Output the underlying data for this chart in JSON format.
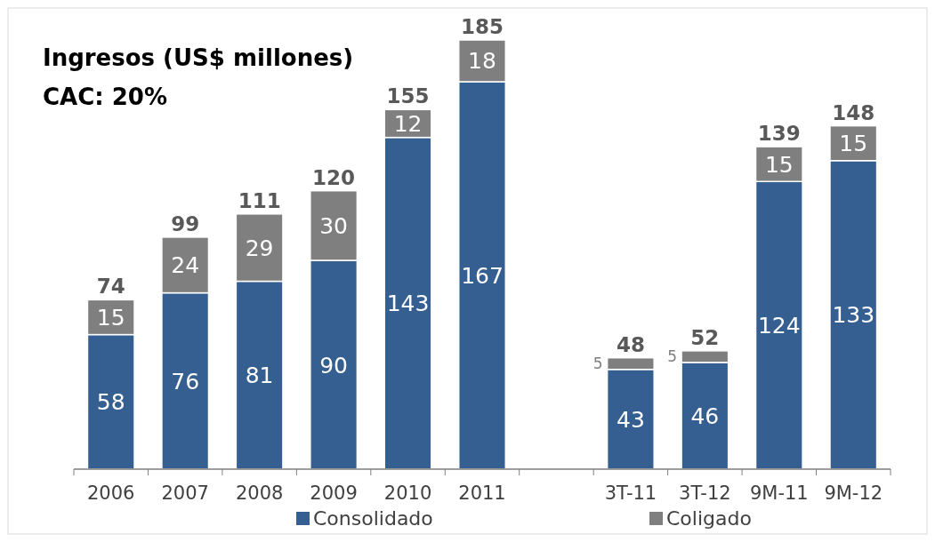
{
  "chart_data": {
    "type": "bar",
    "title": "Ingresos (US$ millones)",
    "subtitle": "CAC: 20%",
    "categories": [
      "2006",
      "2007",
      "2008",
      "2009",
      "2010",
      "2011",
      null,
      "3T-11",
      "3T-12",
      "9M-11",
      "9M-12"
    ],
    "stacked": true,
    "series": [
      {
        "name": "Consolidado",
        "color": "#365f91",
        "values": [
          58,
          76,
          81,
          90,
          143,
          167,
          null,
          43,
          46,
          124,
          133
        ]
      },
      {
        "name": "Coligado",
        "color": "#7f7f7f",
        "values": [
          15,
          24,
          29,
          30,
          12,
          18,
          null,
          5,
          5,
          15,
          15
        ]
      }
    ],
    "totals": [
      "74",
      "99",
      "111",
      "120",
      "155",
      "185",
      null,
      "48",
      "52",
      "139",
      "148"
    ],
    "data_labels": true,
    "legend": "bottom"
  }
}
